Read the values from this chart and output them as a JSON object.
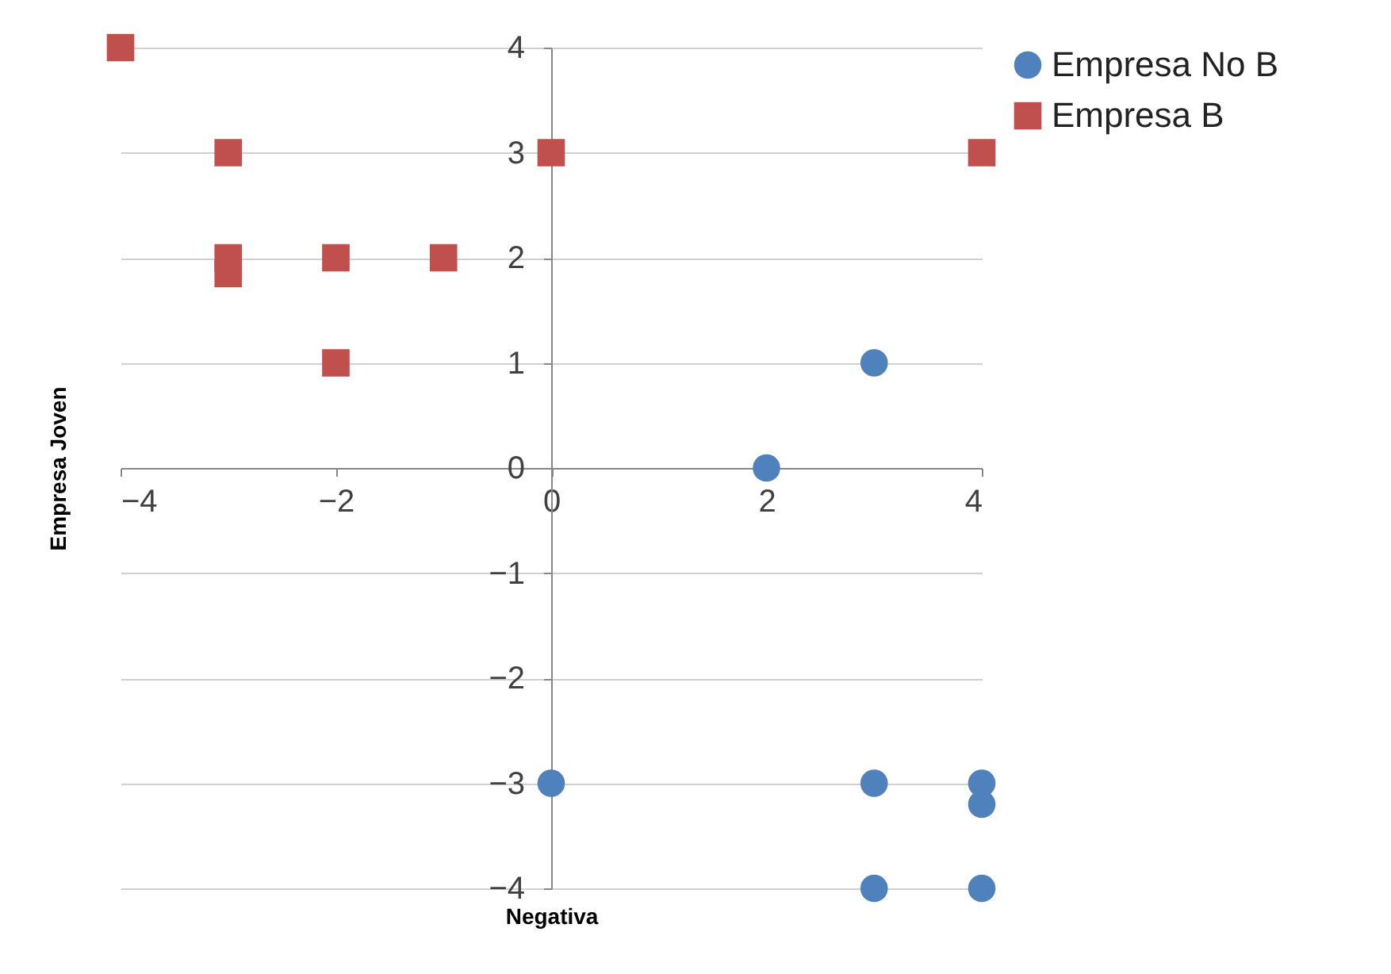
{
  "chart_data": {
    "type": "scatter",
    "xlabel": "Negativa",
    "ylabel": "Empresa Joven",
    "xlim": [
      -4,
      4
    ],
    "ylim": [
      -4,
      4
    ],
    "xticks": [
      -4,
      -2,
      0,
      2,
      4
    ],
    "yticks": [
      -4,
      -3,
      -2,
      -1,
      0,
      1,
      2,
      3,
      4
    ],
    "grid": "y",
    "legend": "right",
    "series": [
      {
        "name": "Empresa No B",
        "color": "#4f81bd",
        "marker": "circle",
        "x": [
          3,
          2,
          0,
          3,
          4,
          4,
          3,
          4
        ],
        "values": [
          1,
          0,
          -3,
          -3,
          -3,
          -3.2,
          -4,
          -4
        ]
      },
      {
        "name": "Empresa B",
        "color": "#c0504d",
        "marker": "square",
        "x": [
          -4,
          -3,
          0,
          4,
          -3,
          -3,
          -2,
          -1,
          -2
        ],
        "values": [
          4,
          3,
          3,
          3,
          2,
          1.85,
          2,
          2,
          1
        ]
      }
    ]
  }
}
